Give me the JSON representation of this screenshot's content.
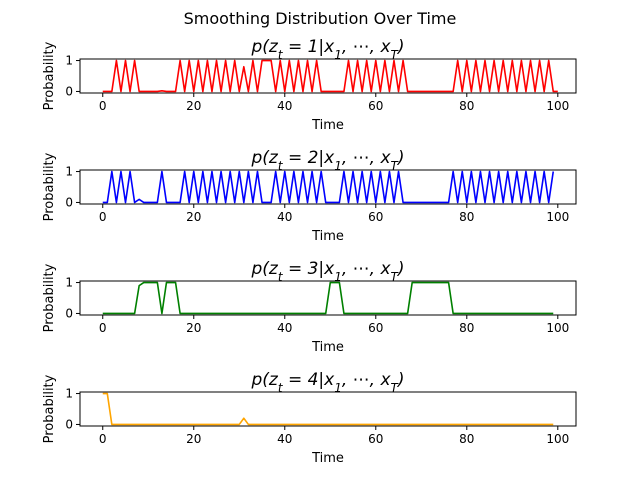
{
  "figure": {
    "suptitle": "Smoothing Distribution Over Time"
  },
  "chart_data": [
    {
      "type": "line",
      "title": "p(z_t = 1|x_1, ..., x_T)",
      "title_parts": {
        "z_sub": "t",
        "eq": "= 1|x",
        "x_sub1": "1",
        "mid": ", ⋯, x",
        "x_subT": "T",
        "close": ")"
      },
      "xlabel": "Time",
      "ylabel": "Probability",
      "xlim": [
        -5,
        104
      ],
      "ylim": [
        -0.05,
        1.05
      ],
      "xticks": [
        0,
        20,
        40,
        60,
        80,
        100
      ],
      "yticks": [
        0,
        1
      ],
      "color": "#ff0000",
      "x_start": 0,
      "values": [
        0,
        0,
        0,
        1,
        0,
        1,
        0,
        1,
        0,
        0,
        0,
        0,
        0,
        0.02,
        0,
        0,
        0,
        1,
        0,
        1,
        0,
        1,
        0,
        1,
        0,
        1,
        0,
        1,
        0,
        1,
        0,
        0.8,
        0,
        1,
        0,
        1,
        1,
        1,
        0,
        1,
        0,
        1,
        0,
        1,
        0,
        1,
        0,
        1,
        0,
        0,
        0,
        0,
        0,
        0,
        1,
        0,
        1,
        0,
        1,
        0,
        1,
        0,
        1,
        0,
        1,
        0,
        1,
        0,
        0,
        0,
        0,
        0,
        0,
        0,
        0,
        0,
        0,
        0,
        1,
        0,
        1,
        0,
        1,
        0,
        1,
        0,
        1,
        0,
        1,
        0,
        1,
        0,
        1,
        0,
        1,
        0,
        1,
        0,
        1,
        0,
        0
      ]
    },
    {
      "type": "line",
      "title": "p(z_t = 2|x_1, ..., x_T)",
      "title_parts": {
        "z_sub": "t",
        "eq": "= 2|x",
        "x_sub1": "1",
        "mid": ", ⋯, x",
        "x_subT": "T",
        "close": ")"
      },
      "xlabel": "Time",
      "ylabel": "Probability",
      "xlim": [
        -5,
        104
      ],
      "ylim": [
        -0.05,
        1.05
      ],
      "xticks": [
        0,
        20,
        40,
        60,
        80,
        100
      ],
      "yticks": [
        0,
        1
      ],
      "color": "#0000ff",
      "x_start": 0,
      "values": [
        0,
        0,
        1,
        0,
        1,
        0,
        1,
        0,
        0.1,
        0,
        0,
        0,
        0,
        1,
        0,
        0,
        0,
        0,
        1,
        0,
        1,
        0,
        1,
        0,
        1,
        0,
        1,
        0,
        1,
        0,
        1,
        0,
        1,
        0,
        1,
        0,
        0,
        0,
        1,
        0,
        1,
        0,
        1,
        0,
        1,
        0,
        1,
        0,
        1,
        0,
        0,
        0,
        0,
        1,
        0,
        1,
        0,
        1,
        0,
        1,
        0,
        1,
        0,
        1,
        0,
        1,
        0,
        0,
        0,
        0,
        0,
        0,
        0,
        0,
        0,
        0,
        0,
        1,
        0,
        1,
        0,
        1,
        0,
        1,
        0,
        1,
        0,
        1,
        0,
        1,
        0,
        1,
        0,
        1,
        0,
        1,
        0,
        1,
        0,
        1
      ]
    },
    {
      "type": "line",
      "title": "p(z_t = 3|x_1, ..., x_T)",
      "title_parts": {
        "z_sub": "t",
        "eq": "= 3|x",
        "x_sub1": "1",
        "mid": ", ⋯, x",
        "x_subT": "T",
        "close": ")"
      },
      "xlabel": "Time",
      "ylabel": "Probability",
      "xlim": [
        -5,
        104
      ],
      "ylim": [
        -0.05,
        1.05
      ],
      "xticks": [
        0,
        20,
        40,
        60,
        80,
        100
      ],
      "yticks": [
        0,
        1
      ],
      "color": "#008000",
      "x_start": 0,
      "values": [
        0,
        0,
        0,
        0,
        0,
        0,
        0,
        0,
        0.9,
        1,
        1,
        1,
        1,
        0,
        1,
        1,
        1,
        0,
        0,
        0,
        0,
        0,
        0,
        0,
        0,
        0,
        0,
        0,
        0,
        0,
        0,
        0,
        0,
        0,
        0,
        0,
        0,
        0,
        0,
        0,
        0,
        0,
        0,
        0,
        0,
        0,
        0,
        0,
        0,
        0,
        1,
        1,
        1,
        0,
        0,
        0,
        0,
        0,
        0,
        0,
        0,
        0,
        0,
        0,
        0,
        0,
        0,
        0,
        1,
        1,
        1,
        1,
        1,
        1,
        1,
        1,
        1,
        0,
        0,
        0,
        0,
        0,
        0,
        0,
        0,
        0,
        0,
        0,
        0,
        0,
        0,
        0,
        0,
        0,
        0,
        0,
        0,
        0,
        0,
        0
      ]
    },
    {
      "type": "line",
      "title": "p(z_t = 4|x_1, ..., x_T)",
      "title_parts": {
        "z_sub": "t",
        "eq": "= 4|x",
        "x_sub1": "1",
        "mid": ", ⋯, x",
        "x_subT": "T",
        "close": ")"
      },
      "xlabel": "Time",
      "ylabel": "Probability",
      "xlim": [
        -5,
        104
      ],
      "ylim": [
        -0.05,
        1.05
      ],
      "xticks": [
        0,
        20,
        40,
        60,
        80,
        100
      ],
      "yticks": [
        0,
        1
      ],
      "color": "#ffa500",
      "x_start": 0,
      "values": [
        1,
        1,
        0,
        0,
        0,
        0,
        0,
        0,
        0,
        0,
        0,
        0,
        0,
        0,
        0,
        0,
        0,
        0,
        0,
        0,
        0,
        0,
        0,
        0,
        0,
        0,
        0,
        0,
        0,
        0,
        0,
        0.2,
        0,
        0,
        0,
        0,
        0,
        0,
        0,
        0,
        0,
        0,
        0,
        0,
        0,
        0,
        0,
        0,
        0,
        0,
        0,
        0,
        0,
        0,
        0,
        0,
        0,
        0,
        0,
        0,
        0,
        0,
        0,
        0,
        0,
        0,
        0,
        0,
        0,
        0,
        0,
        0,
        0,
        0,
        0,
        0,
        0,
        0,
        0,
        0,
        0,
        0,
        0,
        0,
        0,
        0,
        0,
        0,
        0,
        0,
        0,
        0,
        0,
        0,
        0,
        0,
        0,
        0,
        0,
        0
      ]
    }
  ]
}
